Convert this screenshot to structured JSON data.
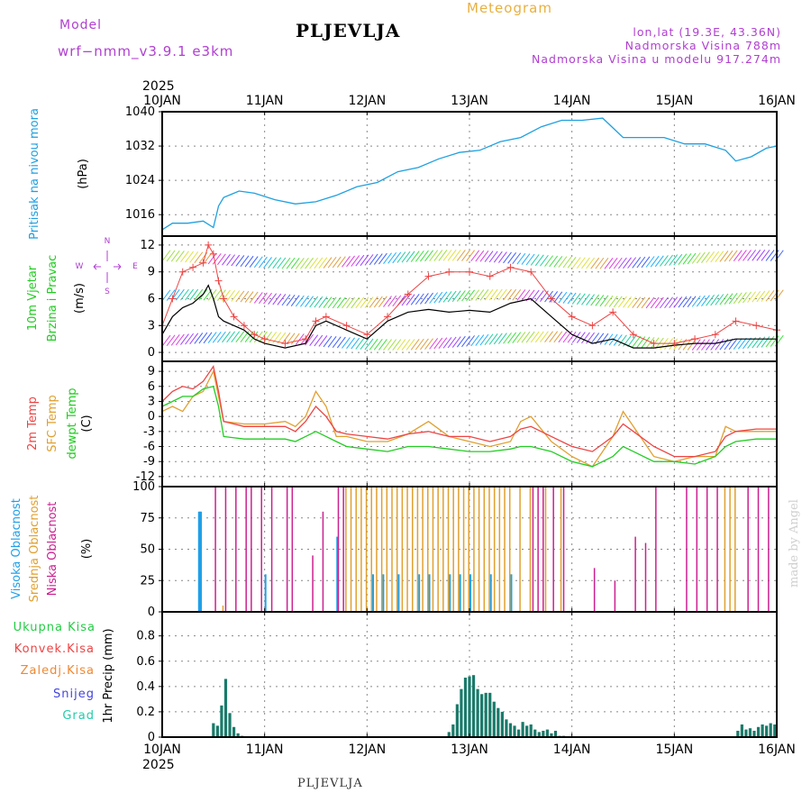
{
  "header": {
    "model_label": "Model",
    "model_name": "wrf−nmm_v3.9.1  e3km",
    "location": "PLJEVLJA",
    "meteogram": "Meteogram",
    "lonlat": "lon,lat (19.3E, 43.36N)",
    "altitude": "Nadmorska Visina 788m",
    "model_altitude": "Nadmorska Visina u modelu 917.274m"
  },
  "footer": {
    "location": "PLJEVLJA",
    "credit": "made by Angel"
  },
  "colors": {
    "pressure": "#1ea0e0",
    "temp": "#ee4444",
    "sfc": "#e0a030",
    "dew": "#22cc22",
    "high_cloud": "#20a0e8",
    "mid_cloud": "#e0a030",
    "low_cloud": "#cc2090",
    "precip_total": "#22cc44",
    "precip_conv": "#ee4444",
    "precip_frozen": "#ee8833",
    "snow": "#4444dd",
    "graupel": "#22ccaa",
    "precip_bar": "#1a7a6a",
    "wind": "#000000",
    "gust": "#ee4444",
    "axis_purple": "#b040d0"
  },
  "chart_data": [
    {
      "type": "line",
      "panel": "pressure",
      "title": "Pritisak na nivou mora",
      "ylabel": "(hPa)",
      "ylim": [
        1011,
        1040
      ],
      "yticks": [
        1016,
        1024,
        1032,
        1040
      ],
      "x_day": [
        0,
        0.1,
        0.25,
        0.4,
        0.5,
        0.55,
        0.6,
        0.75,
        0.9,
        1.1,
        1.3,
        1.5,
        1.7,
        1.9,
        2.1,
        2.3,
        2.5,
        2.7,
        2.9,
        3.1,
        3.3,
        3.5,
        3.7,
        3.9,
        4.1,
        4.3,
        4.5,
        4.7,
        4.9,
        5.1,
        5.3,
        5.5,
        5.6,
        5.75,
        5.9,
        6.0
      ],
      "series": [
        {
          "name": "Pritisak",
          "values": [
            1012.5,
            1014,
            1014,
            1014.5,
            1013,
            1018,
            1020,
            1021.5,
            1021,
            1019.5,
            1018.5,
            1019,
            1020.5,
            1022.5,
            1023.5,
            1026,
            1027,
            1029,
            1030.5,
            1031,
            1033,
            1034,
            1036.5,
            1038,
            1038,
            1038.5,
            1034,
            1034,
            1034,
            1032.5,
            1032.5,
            1031,
            1028.5,
            1029.5,
            1031.5,
            1032
          ]
        }
      ]
    },
    {
      "type": "line",
      "panel": "wind",
      "title": "10m Vjetar",
      "subtitle": "Brzina i Pravac",
      "ylabel": "(m/s)",
      "ylim": [
        -1,
        13
      ],
      "yticks": [
        0,
        3,
        6,
        9,
        12
      ],
      "compass": {
        "north": "N",
        "south": "S",
        "west": "W",
        "east": "E"
      },
      "x_day": [
        0,
        0.1,
        0.2,
        0.3,
        0.4,
        0.45,
        0.5,
        0.55,
        0.6,
        0.7,
        0.8,
        0.9,
        1.0,
        1.2,
        1.4,
        1.5,
        1.6,
        1.8,
        2.0,
        2.2,
        2.4,
        2.6,
        2.8,
        3.0,
        3.2,
        3.4,
        3.6,
        3.8,
        4.0,
        4.2,
        4.4,
        4.6,
        4.8,
        5.0,
        5.2,
        5.4,
        5.6,
        5.8,
        6.0
      ],
      "series": [
        {
          "name": "Brzina",
          "values": [
            2,
            4,
            5,
            5.5,
            6.5,
            7.5,
            6,
            4,
            3.5,
            3,
            2.5,
            1.5,
            1,
            0.5,
            1,
            3,
            3.5,
            2.5,
            1.5,
            3.5,
            4.5,
            4.8,
            4.5,
            4.7,
            4.5,
            5.5,
            6,
            4,
            2,
            1,
            1.5,
            0.5,
            0.5,
            0.8,
            1,
            1,
            1.5,
            1.5,
            1.5
          ]
        },
        {
          "name": "Udar",
          "values": [
            3,
            6,
            9,
            9.5,
            10,
            12,
            11,
            8,
            6,
            4,
            3,
            2,
            1.5,
            1,
            1.5,
            3.5,
            4,
            3,
            2,
            4,
            6.5,
            8.5,
            9,
            9,
            8.5,
            9.5,
            9,
            6,
            4,
            3,
            4.5,
            2,
            1,
            1,
            1.5,
            2,
            3.5,
            3,
            2.5
          ]
        }
      ]
    },
    {
      "type": "line",
      "panel": "temperature",
      "series_labels": [
        "2m Temp",
        "SFC Temp",
        "dewpt Temp"
      ],
      "ylabel": "(C)",
      "ylim": [
        -14,
        11
      ],
      "yticks": [
        -12,
        -9,
        -6,
        -3,
        0,
        3,
        6,
        9
      ],
      "x_day": [
        0,
        0.1,
        0.2,
        0.3,
        0.4,
        0.5,
        0.55,
        0.6,
        0.8,
        1.0,
        1.2,
        1.3,
        1.4,
        1.5,
        1.6,
        1.7,
        1.8,
        2.0,
        2.2,
        2.4,
        2.6,
        2.8,
        3.0,
        3.2,
        3.4,
        3.5,
        3.6,
        3.8,
        4.0,
        4.2,
        4.4,
        4.5,
        4.6,
        4.8,
        5.0,
        5.2,
        5.4,
        5.5,
        5.6,
        5.8,
        6.0
      ],
      "series": [
        {
          "name": "2m Temp",
          "values": [
            3,
            5,
            6,
            5.5,
            7,
            10,
            5,
            -1,
            -2,
            -2,
            -2,
            -3,
            -1,
            2,
            0,
            -3,
            -3.5,
            -4,
            -4.5,
            -3.5,
            -3,
            -4,
            -4,
            -5,
            -4,
            -2.5,
            -2,
            -4,
            -6,
            -7,
            -4,
            -1.5,
            -3,
            -6,
            -8,
            -8,
            -7,
            -4,
            -3,
            -2.5,
            -2.5
          ]
        },
        {
          "name": "SFC Temp",
          "values": [
            1,
            2,
            1,
            4,
            5,
            9,
            4,
            -1,
            -1.5,
            -1.5,
            -1,
            -2,
            0,
            5,
            2,
            -4,
            -4,
            -5,
            -5,
            -3.5,
            -1,
            -4,
            -5,
            -6,
            -5,
            -1,
            0,
            -5,
            -8,
            -10,
            -4,
            1,
            -2,
            -8,
            -9,
            -8,
            -8,
            -2,
            -3,
            -3,
            -3
          ]
        },
        {
          "name": "dewpt Temp",
          "values": [
            2,
            3,
            4,
            4,
            5.5,
            6,
            2,
            -4,
            -4.5,
            -4.5,
            -4.5,
            -5,
            -4,
            -3,
            -4,
            -5,
            -6,
            -6.5,
            -7,
            -6,
            -6,
            -6.5,
            -7,
            -7,
            -6.5,
            -6,
            -6,
            -7,
            -9,
            -10,
            -8,
            -6,
            -7,
            -9,
            -9,
            -9.5,
            -8,
            -6,
            -5,
            -4.5,
            -4.5
          ]
        }
      ]
    },
    {
      "type": "bar",
      "panel": "cloud",
      "series_labels": [
        "Visoka Oblacnost",
        "Srednja Oblacnost",
        "Niska Oblacnost"
      ],
      "ylabel": "(%)",
      "ylim": [
        0,
        100
      ],
      "yticks": [
        0,
        25,
        50,
        75,
        100
      ],
      "bar_series": [
        {
          "name": "Visoka Oblacnost",
          "x_day": [
            0.35,
            0.36,
            0.37,
            1.0,
            1.7,
            2.05,
            2.15,
            2.3,
            2.5,
            2.6,
            2.8,
            2.9,
            3.0,
            3.2,
            3.4
          ],
          "values": [
            80,
            80,
            80,
            30,
            60,
            30,
            30,
            30,
            30,
            30,
            30,
            30,
            30,
            30,
            30
          ]
        },
        {
          "name": "Srednja Oblacnost",
          "x_day": [
            0.6,
            1.8,
            1.85,
            1.9,
            1.95,
            2.0,
            2.05,
            2.1,
            2.15,
            2.2,
            2.25,
            2.3,
            2.35,
            2.4,
            2.45,
            2.5,
            2.55,
            2.6,
            2.65,
            2.7,
            2.75,
            2.8,
            2.85,
            2.9,
            2.95,
            3.0,
            3.05,
            3.1,
            3.15,
            3.2,
            3.25,
            3.3,
            3.35,
            3.4,
            3.5,
            3.6,
            3.75,
            3.9,
            5.5,
            5.55,
            5.6
          ],
          "values": [
            5,
            100,
            100,
            100,
            100,
            100,
            100,
            100,
            100,
            100,
            100,
            100,
            100,
            100,
            100,
            100,
            100,
            100,
            100,
            100,
            100,
            100,
            100,
            100,
            100,
            100,
            100,
            100,
            100,
            100,
            100,
            100,
            100,
            100,
            100,
            100,
            100,
            100,
            100,
            100,
            100
          ]
        },
        {
          "name": "Niska Oblacnost",
          "x_day": [
            0.5,
            0.6,
            0.7,
            0.8,
            0.85,
            0.95,
            1.05,
            1.2,
            1.25,
            1.45,
            1.55,
            1.7,
            1.75,
            3.6,
            3.65,
            3.7,
            3.8,
            3.9,
            4.2,
            4.4,
            4.6,
            4.7,
            4.8,
            5.1,
            5.2,
            5.3,
            5.4,
            5.7,
            5.8,
            5.9
          ],
          "values": [
            100,
            100,
            100,
            100,
            100,
            100,
            100,
            100,
            100,
            45,
            80,
            100,
            100,
            100,
            100,
            100,
            100,
            100,
            35,
            25,
            60,
            55,
            100,
            100,
            100,
            100,
            100,
            100,
            100,
            100
          ]
        }
      ]
    },
    {
      "type": "bar",
      "panel": "precipitation",
      "series_labels": [
        "Ukupna Kisa",
        "Konvek.Kisa",
        "Zaledj.Kisa",
        "Snijeg",
        "Grad"
      ],
      "ylabel": "1hr Precip (mm)",
      "ylim": [
        0,
        0.99
      ],
      "yticks": [
        0,
        0.2,
        0.4,
        0.6,
        0.8
      ],
      "ytick_labels": [
        "0",
        "0.2",
        "0.4",
        "0.6",
        "0.8"
      ],
      "x_day": [
        0.5,
        0.54,
        0.58,
        0.62,
        0.66,
        0.7,
        0.74,
        0.78,
        2.8,
        2.84,
        2.88,
        2.92,
        2.96,
        3.0,
        3.04,
        3.08,
        3.12,
        3.16,
        3.2,
        3.24,
        3.28,
        3.32,
        3.36,
        3.4,
        3.44,
        3.48,
        3.52,
        3.56,
        3.6,
        3.64,
        3.68,
        3.72,
        3.76,
        3.8,
        3.84,
        3.88,
        3.92,
        5.62,
        5.66,
        5.7,
        5.74,
        5.78,
        5.82,
        5.86,
        5.9,
        5.94,
        5.98
      ],
      "values": [
        0.11,
        0.09,
        0.25,
        0.46,
        0.19,
        0.08,
        0.03,
        0.01,
        0.04,
        0.1,
        0.26,
        0.38,
        0.47,
        0.48,
        0.49,
        0.38,
        0.34,
        0.35,
        0.35,
        0.28,
        0.23,
        0.2,
        0.14,
        0.11,
        0.09,
        0.06,
        0.12,
        0.09,
        0.1,
        0.06,
        0.04,
        0.05,
        0.06,
        0.03,
        0.05,
        0.01,
        0.01,
        0.05,
        0.1,
        0.06,
        0.07,
        0.05,
        0.08,
        0.1,
        0.09,
        0.11,
        0.1
      ]
    }
  ],
  "xaxis": {
    "year_top": "2025",
    "year_bottom": "2025",
    "day_labels": [
      "10JAN",
      "11JAN",
      "12JAN",
      "13JAN",
      "14JAN",
      "15JAN",
      "16JAN"
    ]
  }
}
